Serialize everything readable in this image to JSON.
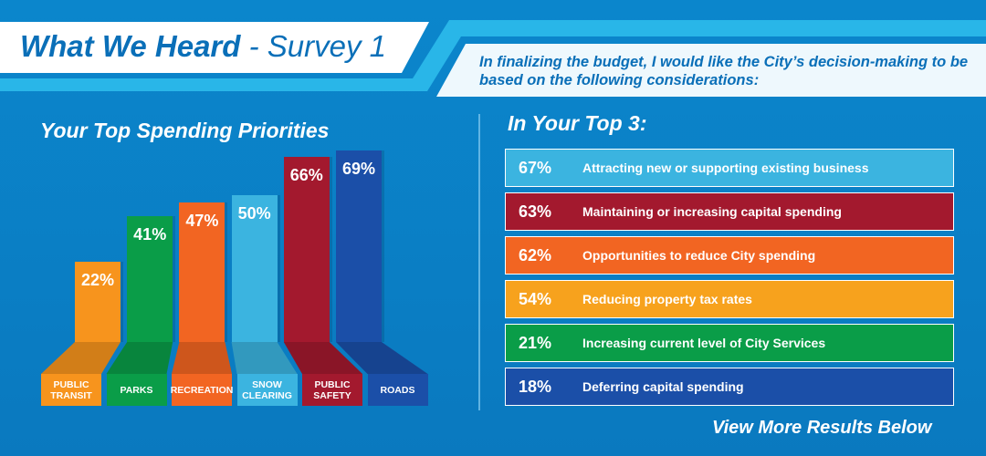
{
  "header": {
    "title": "What We Heard",
    "subtitle": "- Survey 1"
  },
  "question": "In finalizing the budget, I would like the City’s decision-making to be based on the following considerations:",
  "footer": "View More Results Below",
  "chart_data": [
    {
      "type": "bar",
      "title": "Your Top Spending Priorities",
      "categories": [
        "PUBLIC TRANSIT",
        "PARKS",
        "RECREATION",
        "SNOW CLEARING",
        "PUBLIC SAFETY",
        "ROADS"
      ],
      "values": [
        22,
        41,
        47,
        50,
        66,
        69
      ],
      "value_labels": [
        "22%",
        "41%",
        "47%",
        "50%",
        "66%",
        "69%"
      ],
      "colors": [
        "#f7941d",
        "#0a9d48",
        "#f26522",
        "#3bb4e0",
        "#a3192e",
        "#1b4fa8"
      ]
    },
    {
      "type": "list",
      "title": "In Your Top 3:",
      "categories": [
        "Attracting new or supporting existing business",
        "Maintaining or increasing capital spending",
        "Opportunities to reduce City spending",
        "Reducing property tax rates",
        "Increasing current level of City Services",
        "Deferring capital spending"
      ],
      "values": [
        67,
        63,
        62,
        54,
        21,
        18
      ],
      "value_labels": [
        "67%",
        "63%",
        "62%",
        "54%",
        "21%",
        "18%"
      ],
      "colors": [
        "#3bb4e0",
        "#a3192e",
        "#f26522",
        "#f7a21d",
        "#0a9d48",
        "#1b4fa8"
      ]
    }
  ]
}
